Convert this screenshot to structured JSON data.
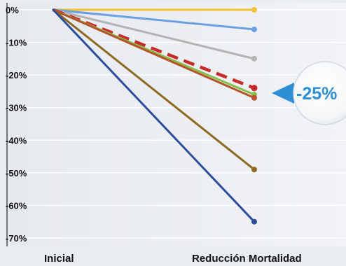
{
  "chart_data": {
    "type": "line",
    "categories": [
      "Inicial",
      "Reducción Mortalidad"
    ],
    "yticks": [
      "0%",
      "-10%",
      "-20%",
      "-30%",
      "-40%",
      "-50%",
      "-60%",
      "-70%"
    ],
    "ytick_values": [
      0,
      -10,
      -20,
      -30,
      -40,
      -50,
      -60,
      -70
    ],
    "ylim": [
      -72,
      2
    ],
    "grid": true,
    "series": [
      {
        "values": [
          0,
          0
        ],
        "color": "#f2c230",
        "dashed": false
      },
      {
        "values": [
          0,
          -6
        ],
        "color": "#6a9fe0",
        "dashed": false
      },
      {
        "values": [
          0,
          -15
        ],
        "color": "#b3b3b3",
        "dashed": false
      },
      {
        "values": [
          0,
          -24
        ],
        "color": "#c62a2a",
        "dashed": true
      },
      {
        "values": [
          0,
          -26
        ],
        "color": "#86bf4d",
        "dashed": false
      },
      {
        "values": [
          0,
          -27
        ],
        "color": "#b5532a",
        "dashed": false
      },
      {
        "values": [
          0,
          -49
        ],
        "color": "#8b6a22",
        "dashed": false
      },
      {
        "values": [
          0,
          -65
        ],
        "color": "#2b4d9b",
        "dashed": false
      }
    ],
    "callout": {
      "text": "-25%",
      "accent_color": "#2e8fd4"
    }
  }
}
